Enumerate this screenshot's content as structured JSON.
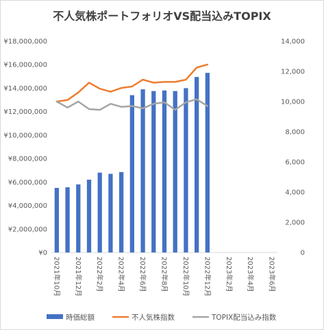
{
  "chart_data": {
    "type": "bar+line",
    "title": "不人気株ポートフォリオVS配当込みTOPIX",
    "categories": [
      "2021年10月",
      "2021年11月",
      "2021年12月",
      "2022年1月",
      "2022年2月",
      "2022年3月",
      "2022年4月",
      "2022年5月",
      "2022年6月",
      "2022年7月",
      "2022年8月",
      "2022年9月",
      "2022年10月",
      "2022年11月",
      "2022年12月",
      "2023年1月",
      "2023年2月",
      "2023年3月",
      "2023年4月",
      "2023年5月",
      "2023年6月"
    ],
    "x_tick_labels": [
      "2021年10月",
      "2021年12月",
      "2022年2月",
      "2022年4月",
      "2022年6月",
      "2022年8月",
      "2022年10月",
      "2022年12月",
      "2023年2月",
      "2023年4月",
      "2023年6月"
    ],
    "y_left": {
      "ylim": [
        0,
        18000000
      ],
      "ticks": [
        "¥0",
        "¥2,000,000",
        "¥4,000,000",
        "¥6,000,000",
        "¥8,000,000",
        "¥10,000,000",
        "¥12,000,000",
        "¥14,000,000",
        "¥16,000,000",
        "¥18,000,000"
      ]
    },
    "y_right": {
      "ylim": [
        0,
        14000
      ],
      "ticks": [
        "0",
        "2,000",
        "4,000",
        "6,000",
        "8,000",
        "10,000",
        "12,000",
        "14,000"
      ]
    },
    "grid": false,
    "legend_position": "bottom",
    "series": [
      {
        "name": "時価総額",
        "kind": "bar",
        "axis": "left",
        "color": "#4472C4",
        "values": [
          5500000,
          5550000,
          5800000,
          6200000,
          6800000,
          6700000,
          6850000,
          13400000,
          13900000,
          13750000,
          13800000,
          13750000,
          14000000,
          14950000,
          15300000,
          null,
          null,
          null,
          null,
          null,
          null
        ]
      },
      {
        "name": "不人気株指数",
        "kind": "line",
        "axis": "right",
        "color": "#ED7D31",
        "values": [
          10000,
          10100,
          10600,
          11250,
          10850,
          10650,
          10900,
          11000,
          11450,
          11250,
          11300,
          11300,
          11450,
          12250,
          12450,
          null,
          null,
          null,
          null,
          null,
          null
        ]
      },
      {
        "name": "TOPIX配当込み指数",
        "kind": "line",
        "axis": "right",
        "color": "#A5A5A5",
        "values": [
          10000,
          9600,
          10000,
          9500,
          9450,
          9850,
          9650,
          9700,
          9550,
          9850,
          9950,
          9450,
          9950,
          10150,
          9700,
          null,
          null,
          null,
          null,
          null,
          null
        ]
      }
    ]
  }
}
